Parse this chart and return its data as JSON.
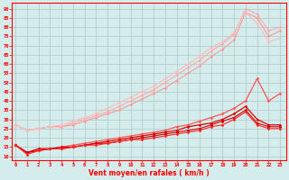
{
  "title": "",
  "xlabel": "Vent moyen/en rafales ( km/h )",
  "background_color": "#d4ecec",
  "grid_color": "#b0c8c8",
  "x": [
    0,
    1,
    2,
    3,
    4,
    5,
    6,
    7,
    8,
    9,
    10,
    11,
    12,
    13,
    14,
    15,
    16,
    17,
    18,
    19,
    20,
    21,
    22,
    23
  ],
  "series": [
    {
      "color": "#ff9999",
      "lw": 0.8,
      "y": [
        27,
        24,
        25,
        26,
        26,
        27,
        29,
        31,
        33,
        35,
        38,
        41,
        44,
        47,
        51,
        55,
        59,
        64,
        68,
        73,
        88,
        85,
        75,
        78
      ]
    },
    {
      "color": "#ffaaaa",
      "lw": 0.8,
      "y": [
        27,
        24,
        25,
        26,
        26,
        28,
        30,
        32,
        34,
        37,
        40,
        43,
        46,
        50,
        54,
        58,
        62,
        67,
        71,
        76,
        90,
        87,
        78,
        80
      ]
    },
    {
      "color": "#ffbbbb",
      "lw": 0.8,
      "y": [
        27,
        24,
        25,
        26,
        27,
        29,
        31,
        33,
        36,
        39,
        42,
        45,
        48,
        52,
        56,
        60,
        64,
        69,
        72,
        77,
        88,
        82,
        72,
        74
      ]
    },
    {
      "color": "#ff5555",
      "lw": 0.9,
      "y": [
        16,
        12,
        14,
        14,
        15,
        16,
        17,
        18,
        19,
        20,
        21,
        22,
        23,
        24,
        26,
        27,
        29,
        31,
        33,
        36,
        40,
        52,
        40,
        44
      ]
    },
    {
      "color": "#dd0000",
      "lw": 0.9,
      "y": [
        16,
        12,
        14,
        14,
        15,
        15,
        16,
        17,
        18,
        19,
        20,
        21,
        22,
        23,
        24,
        26,
        27,
        28,
        30,
        33,
        37,
        30,
        27,
        27
      ]
    },
    {
      "color": "#cc0000",
      "lw": 0.8,
      "y": [
        16,
        12,
        13,
        14,
        14,
        15,
        16,
        17,
        17,
        18,
        19,
        20,
        21,
        22,
        23,
        24,
        25,
        27,
        29,
        31,
        35,
        28,
        26,
        26
      ]
    },
    {
      "color": "#ff2222",
      "lw": 0.8,
      "y": [
        16,
        11,
        13,
        14,
        14,
        15,
        16,
        16,
        17,
        18,
        19,
        19,
        20,
        21,
        22,
        23,
        24,
        26,
        27,
        30,
        34,
        27,
        25,
        25
      ]
    }
  ],
  "yticks": [
    10,
    15,
    20,
    25,
    30,
    35,
    40,
    45,
    50,
    55,
    60,
    65,
    70,
    75,
    80,
    85,
    90
  ],
  "xticks": [
    0,
    1,
    2,
    3,
    4,
    5,
    6,
    7,
    8,
    9,
    10,
    11,
    12,
    13,
    14,
    15,
    16,
    17,
    18,
    19,
    20,
    21,
    22,
    23
  ],
  "ylim": [
    8,
    93
  ],
  "xlim": [
    -0.3,
    23.5
  ],
  "markersize": 1.8
}
